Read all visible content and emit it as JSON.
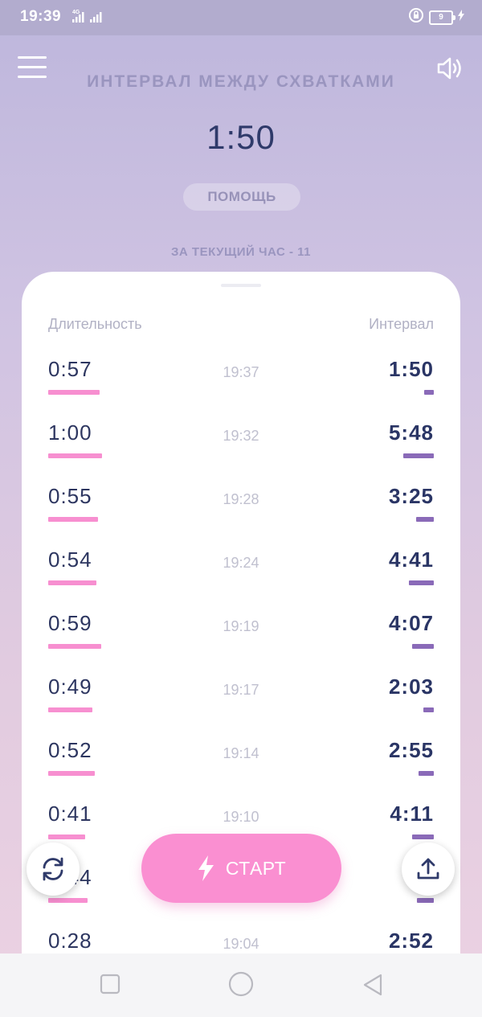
{
  "status_bar": {
    "time": "19:39",
    "network": "4G",
    "battery": "9"
  },
  "header": {
    "title": "ИНТЕРВАЛ МЕЖДУ СХВАТКАМИ",
    "interval": "1:50",
    "help_label": "ПОМОЩЬ",
    "hour_count": "ЗА ТЕКУЩИЙ ЧАС - 11"
  },
  "table": {
    "col_duration": "Длительность",
    "col_interval": "Интервал",
    "rows": [
      {
        "duration": "0:57",
        "time": "19:37",
        "interval": "1:50",
        "dur_frac": 0.95,
        "int_frac": 0.19
      },
      {
        "duration": "1:00",
        "time": "19:32",
        "interval": "5:48",
        "dur_frac": 1.0,
        "int_frac": 1.0
      },
      {
        "duration": "0:55",
        "time": "19:28",
        "interval": "3:25",
        "dur_frac": 0.92,
        "int_frac": 0.59
      },
      {
        "duration": "0:54",
        "time": "19:24",
        "interval": "4:41",
        "dur_frac": 0.9,
        "int_frac": 0.81
      },
      {
        "duration": "0:59",
        "time": "19:19",
        "interval": "4:07",
        "dur_frac": 0.98,
        "int_frac": 0.71
      },
      {
        "duration": "0:49",
        "time": "19:17",
        "interval": "2:03",
        "dur_frac": 0.82,
        "int_frac": 0.35
      },
      {
        "duration": "0:52",
        "time": "19:14",
        "interval": "2:55",
        "dur_frac": 0.87,
        "int_frac": 0.5
      },
      {
        "duration": "0:41",
        "time": "19:10",
        "interval": "4:11",
        "dur_frac": 0.68,
        "int_frac": 0.72
      },
      {
        "duration": "0:44",
        "time": "",
        "interval": "3:",
        "dur_frac": 0.73,
        "int_frac": 0.55
      },
      {
        "duration": "0:28",
        "time": "19:04",
        "interval": "2:52",
        "dur_frac": 0.47,
        "int_frac": 0.5
      }
    ]
  },
  "actions": {
    "start_label": "СТАРТ"
  },
  "icons": {
    "menu": "menu-icon",
    "sound": "speaker-icon",
    "refresh": "refresh-icon",
    "share": "share-upload-icon",
    "start": "lightning-icon"
  },
  "colors": {
    "duration_bar": "#f78fd0",
    "interval_bar": "#8a6ab8",
    "start_button": "#fa8fd1"
  }
}
